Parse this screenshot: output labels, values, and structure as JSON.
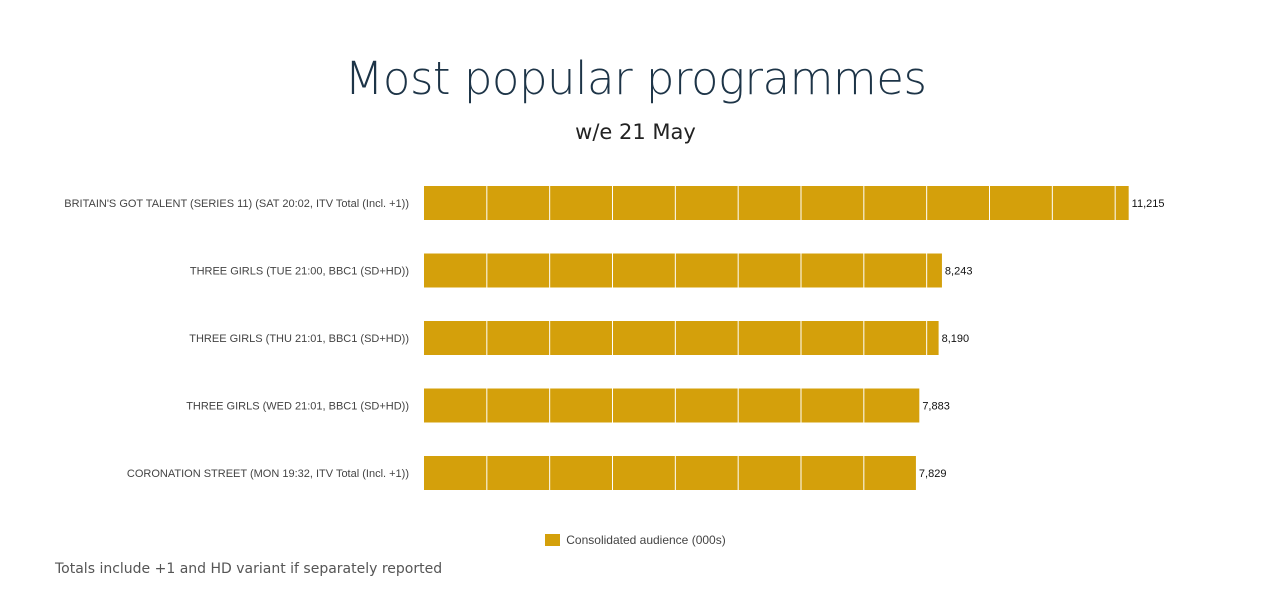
{
  "chart_data": {
    "type": "bar",
    "orientation": "horizontal",
    "title": "Most popular programmes",
    "subtitle": "w/e 21 May",
    "categories": [
      "BRITAIN'S GOT TALENT (SERIES 11) (SAT 20:02, ITV Total (Incl. +1))",
      "THREE GIRLS (TUE 21:00, BBC1 (SD+HD))",
      "THREE GIRLS (THU 21:01, BBC1 (SD+HD))",
      "THREE GIRLS (WED 21:01, BBC1 (SD+HD))",
      "CORONATION STREET (MON 19:32, ITV Total (Incl. +1))"
    ],
    "series": [
      {
        "name": "Consolidated audience (000s)",
        "values": [
          11215,
          8243,
          8190,
          7883,
          7829
        ],
        "value_labels": [
          "11,215",
          "8,243",
          "8,190",
          "7,883",
          "7,829"
        ],
        "color": "#d4a00b"
      }
    ],
    "xlim": [
      0,
      12000
    ],
    "grid_step": 1000,
    "gridlines": true,
    "legend_position": "bottom-center",
    "footnote": "Totals include +1 and HD variant if separately reported"
  }
}
